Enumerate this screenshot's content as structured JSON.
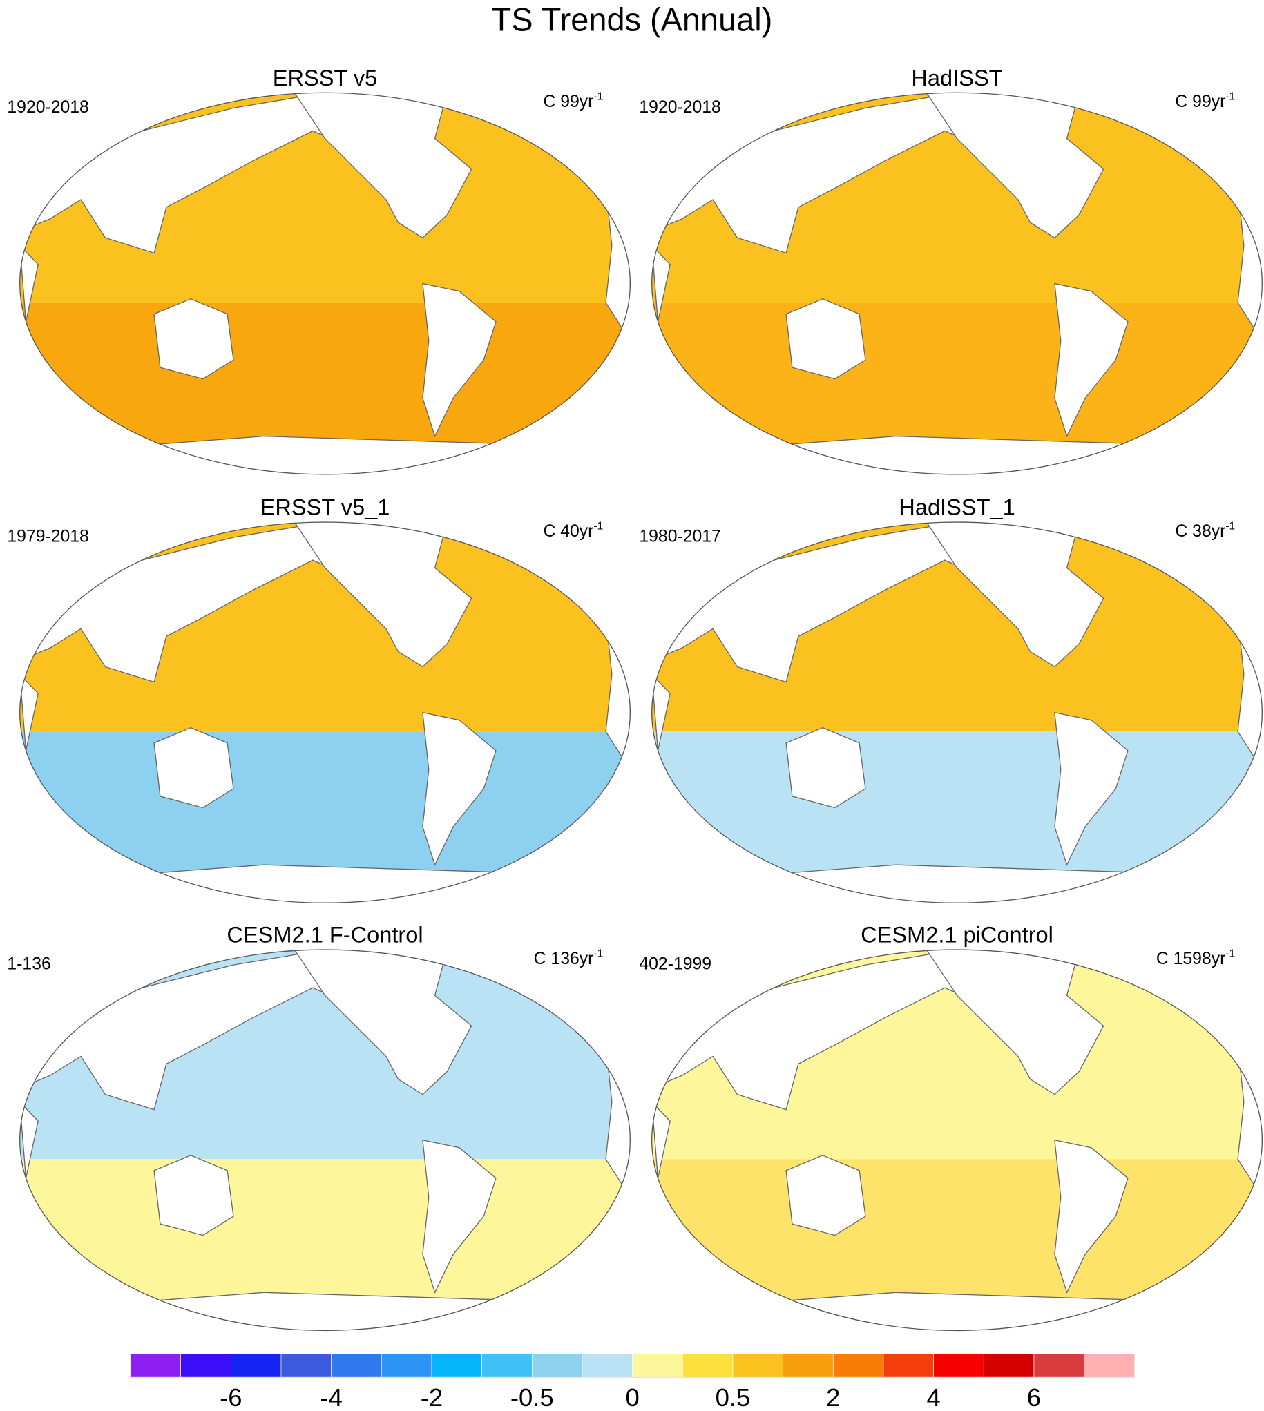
{
  "title": "TS Trends (Annual)",
  "panels": [
    {
      "title": "ERSST v5",
      "period": "1920-2018",
      "units": {
        "text": "C 99yr",
        "sup": "-1"
      },
      "colors": [
        "#fbc11e",
        "#f9a70f"
      ]
    },
    {
      "title": "HadISST",
      "period": "1920-2018",
      "units": {
        "text": "C 99yr",
        "sup": "-1"
      },
      "colors": [
        "#fbc11e",
        "#fbb318"
      ]
    },
    {
      "title": "ERSST v5_1",
      "period": "1979-2018",
      "units": {
        "text": "C 40yr",
        "sup": "-1"
      },
      "colors": [
        "#fbc11e",
        "#8dd0f0"
      ]
    },
    {
      "title": "HadISST_1",
      "period": "1980-2017",
      "units": {
        "text": "C 38yr",
        "sup": "-1"
      },
      "colors": [
        "#fbc11e",
        "#b9e3f5"
      ]
    },
    {
      "title": "CESM2.1 F-Control",
      "period": "1-136",
      "units": {
        "text": "C 136yr",
        "sup": "-1"
      },
      "colors": [
        "#b9e3f5",
        "#fef69a"
      ]
    },
    {
      "title": "CESM2.1 piControl",
      "period": "402-1999",
      "units": {
        "text": "C 1598yr",
        "sup": "-1"
      },
      "colors": [
        "#fef69a",
        "#fde36a"
      ]
    }
  ],
  "colorbar": {
    "colors": [
      "#8c1ff2",
      "#3a0ff5",
      "#1425f2",
      "#3a5ae0",
      "#2f78ee",
      "#2b94f4",
      "#06b4fa",
      "#3ec2f5",
      "#8dd0f0",
      "#b9e3f5",
      "#fef69a",
      "#fde03c",
      "#fbc11e",
      "#f99f0c",
      "#f77d06",
      "#f43f0c",
      "#f90000",
      "#d40000",
      "#d83c3c",
      "#ffb1b1"
    ],
    "labels": [
      null,
      -6,
      null,
      -4,
      null,
      -2,
      null,
      -0.5,
      null,
      0,
      null,
      0.5,
      null,
      2,
      null,
      4,
      null,
      6,
      null
    ]
  }
}
